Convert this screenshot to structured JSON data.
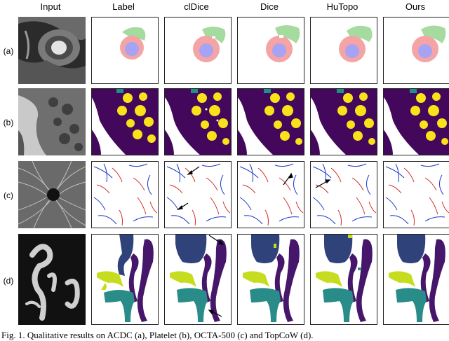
{
  "columns": [
    "Input",
    "Label",
    "clDice",
    "Dice",
    "HuTopo",
    "Ours"
  ],
  "rows": [
    "(a)",
    "(b)",
    "(c)",
    "(d)"
  ],
  "caption": "Fig. 1. Qualitative results on ACDC (a), Platelet (b), OCTA-500 (c) and TopCoW (d).",
  "colors": {
    "acdc_green": "#a6dba0",
    "acdc_pink": "#f4a4a4",
    "acdc_blue": "#a7a3f4",
    "platelet_purple": "#43085b",
    "platelet_yellow": "#f9e21a",
    "platelet_teal": "#1f8f8a",
    "octa_red": "#d62a2a",
    "octa_blue": "#1b36c8",
    "topcow_navy": "#30427a",
    "topcow_purple": "#46166a",
    "topcow_lime": "#c6dd1f",
    "topcow_teal": "#2a8c88"
  }
}
